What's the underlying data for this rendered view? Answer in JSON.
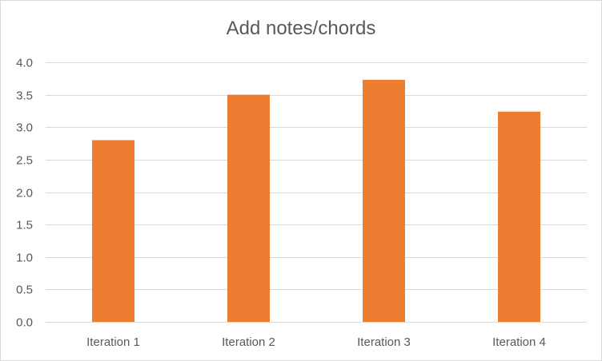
{
  "chart_data": {
    "type": "bar",
    "title": "Add notes/chords",
    "categories": [
      "Iteration 1",
      "Iteration 2",
      "Iteration 3",
      "Iteration 4"
    ],
    "values": [
      2.8,
      3.5,
      3.73,
      3.24
    ],
    "ylim": [
      0,
      4
    ],
    "yticks": [
      "0.0",
      "0.5",
      "1.0",
      "1.5",
      "2.0",
      "2.5",
      "3.0",
      "3.5",
      "4.0"
    ],
    "grid": true,
    "legend": "none",
    "bar_color": "#ED7D31",
    "gridline_color": "#D9D9D9",
    "text_color": "#595959"
  }
}
